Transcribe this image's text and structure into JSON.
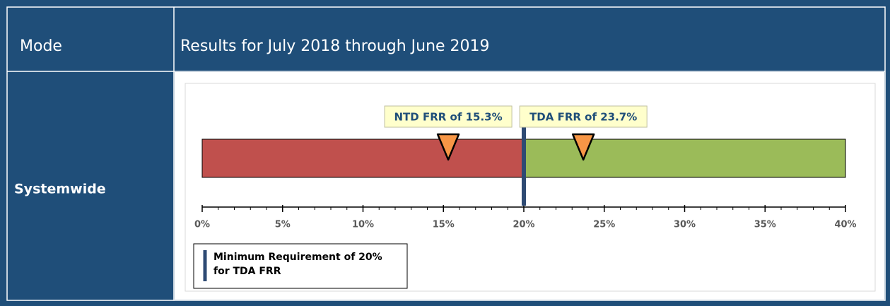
{
  "table": {
    "header": [
      "Mode",
      "Results for July 2018 through June 2019"
    ],
    "rows": [
      [
        "Systemwide"
      ]
    ]
  },
  "chart_data": {
    "type": "bullet",
    "xlim": [
      0,
      40
    ],
    "xticks": [
      {
        "value": 0,
        "label": "0%"
      },
      {
        "value": 5,
        "label": "5%"
      },
      {
        "value": 10,
        "label": "10%"
      },
      {
        "value": 15,
        "label": "15%"
      },
      {
        "value": 20,
        "label": "20%"
      },
      {
        "value": 25,
        "label": "25%"
      },
      {
        "value": 30,
        "label": "30%"
      },
      {
        "value": 35,
        "label": "35%"
      },
      {
        "value": 40,
        "label": "40%"
      }
    ],
    "minor_xtick_step": 1,
    "ranges": [
      {
        "from": 0,
        "to": 20,
        "color": "#c0504d"
      },
      {
        "from": 20,
        "to": 40,
        "color": "#9bbb59"
      }
    ],
    "markers": [
      {
        "value": 15.3,
        "label": "NTD FRR of 15.3%",
        "color": "#f79646"
      },
      {
        "value": 23.7,
        "label": "TDA FRR of 23.7%",
        "color": "#f79646"
      }
    ],
    "threshold": {
      "value": 20,
      "color": "#2e4a73",
      "legend": "Minimum Requirement of 20% for TDA FRR"
    }
  }
}
